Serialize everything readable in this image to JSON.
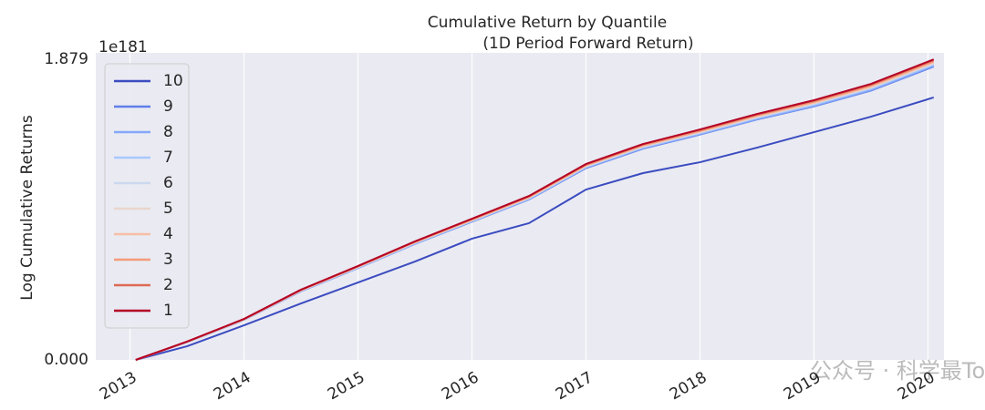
{
  "chart_data": {
    "type": "line",
    "title": "Cumulative Return by Quantile",
    "subtitle": "(1D Period Forward Return)",
    "y_label": "Log Cumulative Returns",
    "y_offset_label": "1e181",
    "watermark": "公众号 · 科学最Top",
    "x": [
      2013.05,
      2013.5,
      2014,
      2014.5,
      2015,
      2015.5,
      2016,
      2016.5,
      2017,
      2017.5,
      2018,
      2018.5,
      2019,
      2019.5,
      2020.05
    ],
    "xlim": [
      2012.7,
      2020.14
    ],
    "xticks": [
      2013,
      2014,
      2015,
      2016,
      2017,
      2018,
      2019,
      2020
    ],
    "ylim": [
      0,
      1.92
    ],
    "yticks": [
      {
        "value": 0,
        "label": "0.000"
      },
      {
        "value": 1.879,
        "label": "1.879"
      }
    ],
    "grid": "x",
    "legend": "upper left",
    "series": [
      {
        "name": "10",
        "color": "#3b4cc0",
        "values": [
          0,
          0.085,
          0.216,
          0.353,
          0.484,
          0.615,
          0.758,
          0.855,
          1.065,
          1.168,
          1.236,
          1.327,
          1.424,
          1.521,
          1.641
        ]
      },
      {
        "name": "9",
        "color": "#5f7fe8",
        "values": [
          0,
          0.111,
          0.25,
          0.429,
          0.574,
          0.725,
          0.864,
          1.003,
          1.199,
          1.321,
          1.409,
          1.503,
          1.585,
          1.684,
          1.834
        ]
      },
      {
        "name": "8",
        "color": "#85a8fc",
        "values": [
          0,
          0.111,
          0.25,
          0.43,
          0.575,
          0.726,
          0.866,
          1.005,
          1.202,
          1.324,
          1.412,
          1.506,
          1.589,
          1.688,
          1.839
        ]
      },
      {
        "name": "7",
        "color": "#aac7fd",
        "values": [
          0,
          0.112,
          0.251,
          0.432,
          0.578,
          0.73,
          0.869,
          1.009,
          1.207,
          1.329,
          1.418,
          1.513,
          1.596,
          1.696,
          1.847
        ]
      },
      {
        "name": "6",
        "color": "#cbd8ee",
        "values": [
          0,
          0.112,
          0.252,
          0.433,
          0.579,
          0.732,
          0.872,
          1.012,
          1.21,
          1.333,
          1.422,
          1.517,
          1.602,
          1.702,
          1.853
        ]
      },
      {
        "name": "5",
        "color": "#e8d6cc",
        "values": [
          0,
          0.112,
          0.253,
          0.434,
          0.581,
          0.733,
          0.873,
          1.014,
          1.212,
          1.336,
          1.425,
          1.52,
          1.605,
          1.705,
          1.857
        ]
      },
      {
        "name": "4",
        "color": "#f6bfa6",
        "values": [
          0,
          0.113,
          0.253,
          0.435,
          0.582,
          0.735,
          0.875,
          1.016,
          1.215,
          1.338,
          1.428,
          1.524,
          1.608,
          1.709,
          1.861
        ]
      },
      {
        "name": "3",
        "color": "#f39a7b",
        "values": [
          0,
          0.113,
          0.254,
          0.436,
          0.584,
          0.737,
          0.878,
          1.019,
          1.218,
          1.342,
          1.432,
          1.529,
          1.614,
          1.715,
          1.867
        ]
      },
      {
        "name": "2",
        "color": "#de6a53",
        "values": [
          0,
          0.114,
          0.255,
          0.438,
          0.586,
          0.74,
          0.881,
          1.023,
          1.222,
          1.347,
          1.438,
          1.534,
          1.62,
          1.721,
          1.874
        ]
      },
      {
        "name": "1",
        "color": "#b40426",
        "values": [
          0,
          0.114,
          0.256,
          0.439,
          0.587,
          0.741,
          0.883,
          1.025,
          1.225,
          1.35,
          1.441,
          1.538,
          1.624,
          1.726,
          1.879
        ]
      }
    ]
  }
}
